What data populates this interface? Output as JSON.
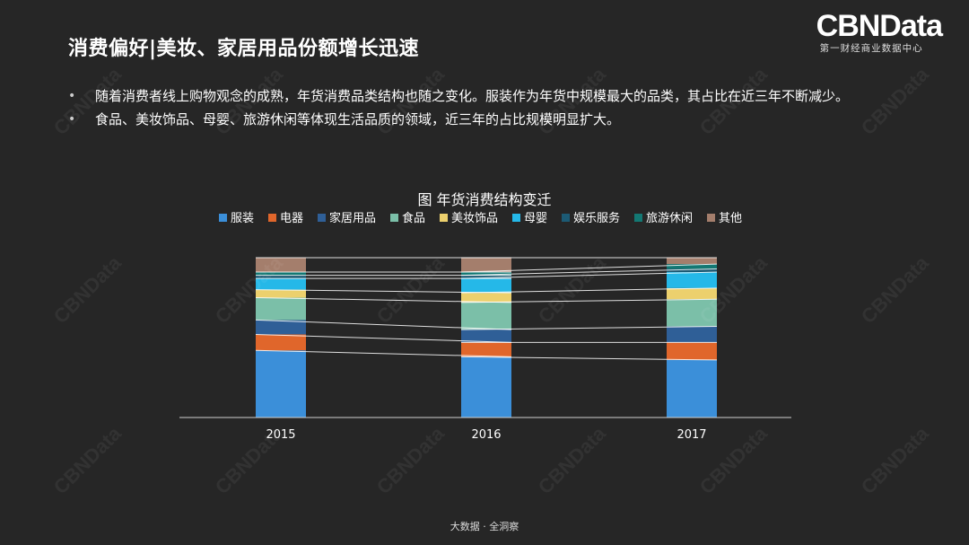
{
  "header": {
    "title": "消费偏好|美妆、家居用品份额增长迅速"
  },
  "logo": {
    "mark": "CBNData",
    "subtitle": "第一财经商业数据中心"
  },
  "bullets": [
    {
      "marker": "•",
      "text": "随着消费者线上购物观念的成熟，年货消费品类结构也随之变化。服装作为年货中规模最大的品类，其占比在近三年不断减少。"
    },
    {
      "marker": "•",
      "text": "食品、美妆饰品、母婴、旅游休闲等体现生活品质的领域，近三年的占比规模明显扩大。"
    }
  ],
  "watermark": {
    "text": "CBNData"
  },
  "footer": {
    "text": "大数据 · 全洞察"
  },
  "chart_data": {
    "type": "bar",
    "stacked": true,
    "normalized_percent": true,
    "title": "图 年货消费结构变迁",
    "xlabel": "",
    "ylabel": "",
    "ylim": [
      0,
      100
    ],
    "grid": false,
    "legend_position": "top",
    "connector_lines": true,
    "categories": [
      "2015",
      "2016",
      "2017"
    ],
    "series": [
      {
        "name": "服装",
        "color": "#3b8fd9",
        "values": [
          42,
          38,
          36
        ]
      },
      {
        "name": "电器",
        "color": "#e0662b",
        "values": [
          10,
          9,
          11
        ]
      },
      {
        "name": "家居用品",
        "color": "#2f5f97",
        "values": [
          9,
          8,
          10
        ]
      },
      {
        "name": "食品",
        "color": "#7bbfa8",
        "values": [
          14,
          17,
          17
        ]
      },
      {
        "name": "美妆饰品",
        "color": "#ecd06d",
        "values": [
          5,
          6,
          7
        ]
      },
      {
        "name": "母婴",
        "color": "#25b8e8",
        "values": [
          7,
          9,
          10
        ]
      },
      {
        "name": "娱乐服务",
        "color": "#1c5a74",
        "values": [
          2,
          2,
          2
        ]
      },
      {
        "name": "旅游休闲",
        "color": "#137873",
        "values": [
          2,
          2,
          3
        ]
      },
      {
        "name": "其他",
        "color": "#a47e6c",
        "values": [
          9,
          9,
          4
        ]
      }
    ]
  }
}
